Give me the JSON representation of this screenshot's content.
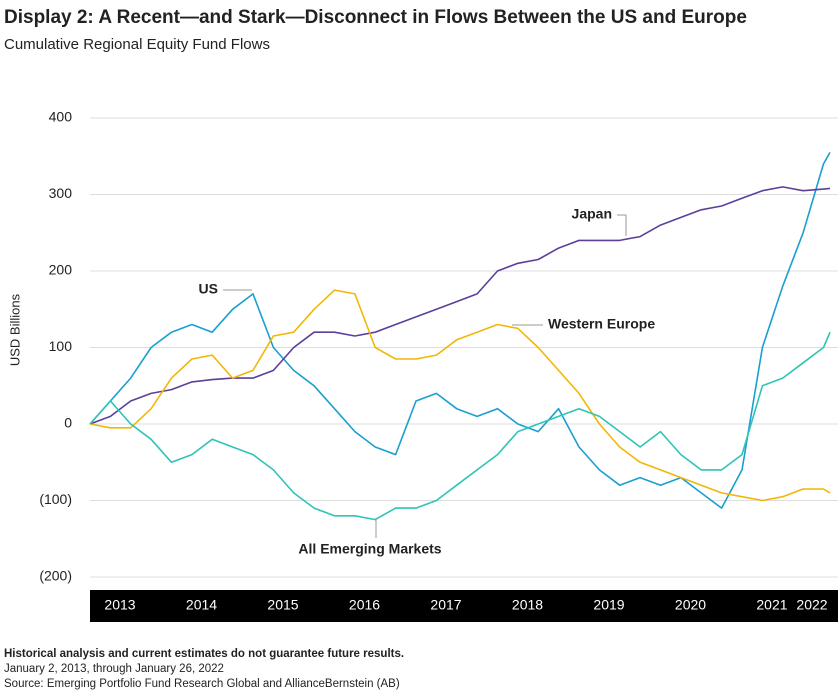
{
  "chart_data": {
    "type": "line",
    "title": "Display 2: A Recent—and Stark—Disconnect in Flows Between the US and Europe",
    "subtitle": "Cumulative Regional Equity Fund Flows",
    "y_label": "USD Billions",
    "x": [
      2013,
      2013.25,
      2013.5,
      2013.75,
      2014,
      2014.25,
      2014.5,
      2014.75,
      2015,
      2015.25,
      2015.5,
      2015.75,
      2016,
      2016.25,
      2016.5,
      2016.75,
      2017,
      2017.25,
      2017.5,
      2017.75,
      2018,
      2018.25,
      2018.5,
      2018.75,
      2019,
      2019.25,
      2019.5,
      2019.75,
      2020,
      2020.25,
      2020.5,
      2020.75,
      2021,
      2021.25,
      2021.5,
      2021.75,
      2022,
      2022.08
    ],
    "xlim": [
      2013,
      2022.08
    ],
    "xticks": [
      2013,
      2014,
      2015,
      2016,
      2017,
      2018,
      2019,
      2020,
      2021,
      2022
    ],
    "ylim": [
      -200,
      400
    ],
    "yticks": [
      {
        "value": -200,
        "label": "(200)"
      },
      {
        "value": -100,
        "label": "(100)"
      },
      0,
      100,
      200,
      300,
      400
    ],
    "grid": true,
    "series": [
      {
        "name": "US",
        "color": "#1a9fd1",
        "values": [
          0,
          30,
          60,
          100,
          120,
          130,
          120,
          150,
          170,
          100,
          70,
          50,
          20,
          -10,
          -30,
          -40,
          30,
          40,
          20,
          10,
          20,
          0,
          -10,
          20,
          -30,
          -60,
          -80,
          -70,
          -80,
          -70,
          -90,
          -110,
          -60,
          100,
          180,
          250,
          340,
          355
        ]
      },
      {
        "name": "Japan",
        "color": "#5b3f99",
        "values": [
          0,
          10,
          30,
          40,
          45,
          55,
          58,
          60,
          60,
          70,
          100,
          120,
          120,
          115,
          120,
          130,
          140,
          150,
          160,
          170,
          200,
          210,
          215,
          230,
          240,
          240,
          240,
          245,
          260,
          270,
          280,
          285,
          295,
          305,
          310,
          305,
          307,
          308
        ]
      },
      {
        "name": "Western Europe",
        "color": "#f2b705",
        "values": [
          0,
          -5,
          -5,
          20,
          60,
          85,
          90,
          60,
          70,
          115,
          120,
          150,
          175,
          170,
          100,
          85,
          85,
          90,
          110,
          120,
          130,
          125,
          100,
          70,
          40,
          0,
          -30,
          -50,
          -60,
          -70,
          -80,
          -90,
          -95,
          -100,
          -95,
          -85,
          -85,
          -90
        ]
      },
      {
        "name": "All Emerging Markets",
        "color": "#2ec4b6",
        "values": [
          0,
          30,
          0,
          -20,
          -50,
          -40,
          -20,
          -30,
          -40,
          -60,
          -90,
          -110,
          -120,
          -120,
          -125,
          -110,
          -110,
          -100,
          -80,
          -60,
          -40,
          -10,
          0,
          10,
          20,
          10,
          -10,
          -30,
          -10,
          -40,
          -60,
          -60,
          -40,
          50,
          60,
          80,
          100,
          120
        ]
      }
    ],
    "notes": [
      "Historical analysis and current estimates do not guarantee future results.",
      "January 2, 2013, through January 26, 2022",
      "Source: Emerging Portfolio Fund Research Global and AllianceBernstein (AB)"
    ]
  }
}
